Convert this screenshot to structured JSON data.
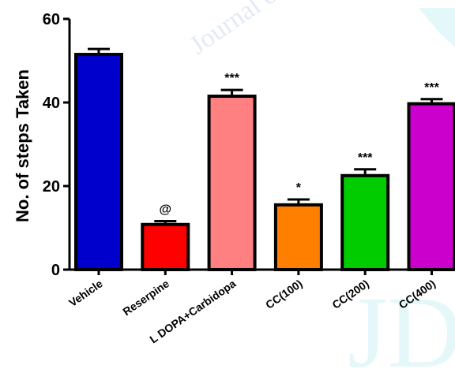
{
  "chart_data": {
    "type": "bar",
    "title": "",
    "xlabel": "",
    "ylabel": "No. of steps Taken",
    "ylim": [
      0,
      60
    ],
    "yticks": [
      "0",
      "20",
      "40",
      "60"
    ],
    "categories": [
      "Vehicle",
      "Reserpine",
      "L DOPA+Carbidopa",
      "CC(100)",
      "CC(200)",
      "CC(400)"
    ],
    "values": [
      51.5,
      10.8,
      41.5,
      15.5,
      22.5,
      39.7
    ],
    "errors": [
      1.3,
      0.8,
      1.5,
      1.3,
      1.5,
      1.1
    ],
    "significance": [
      "",
      "@",
      "***",
      "*",
      "***",
      "***"
    ],
    "colors": [
      "#0000cc",
      "#ff0000",
      "#ff8080",
      "#ff8000",
      "#00cc00",
      "#cc00cc"
    ],
    "grid": false,
    "legend": "none"
  },
  "watermark": {
    "arc_text": "Journal of",
    "big_text": "JD"
  }
}
